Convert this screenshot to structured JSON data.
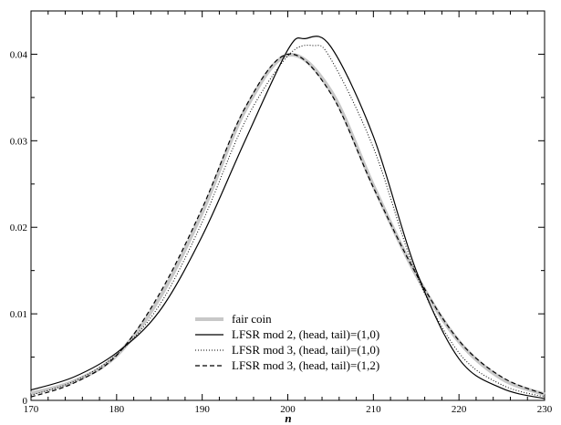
{
  "chart_data": {
    "type": "line",
    "title": "",
    "xlabel": "n",
    "ylabel": "",
    "xlim": [
      170,
      230
    ],
    "ylim": [
      0,
      0.045
    ],
    "xticks": [
      170,
      180,
      190,
      200,
      210,
      220,
      230
    ],
    "yticks": [
      0.01,
      0.02,
      0.03,
      0.04
    ],
    "ytick_labels": [
      "0.01",
      "0.02",
      "0.03",
      "0.04"
    ],
    "xtick_labels": [
      "170",
      "180",
      "190",
      "200",
      "210",
      "220",
      "230"
    ],
    "legend_position": "bottom-center",
    "series": [
      {
        "name": "fair coin",
        "style": "thick-gray",
        "color": "#c8c8c8",
        "x": [
          170,
          175,
          180,
          185,
          190,
          195,
          200,
          205,
          210,
          215,
          220,
          225,
          230
        ],
        "y": [
          0.0008,
          0.0022,
          0.0052,
          0.0118,
          0.0217,
          0.0335,
          0.0399,
          0.0358,
          0.0248,
          0.0145,
          0.0068,
          0.0025,
          0.0007
        ]
      },
      {
        "name": "LFSR mod 2, (head, tail)=(1,0)",
        "style": "solid",
        "color": "#000000",
        "x": [
          170,
          175,
          180,
          185,
          190,
          195,
          200,
          202,
          205,
          210,
          215,
          220,
          225,
          230
        ],
        "y": [
          0.0012,
          0.0027,
          0.0055,
          0.0103,
          0.019,
          0.03,
          0.0405,
          0.0418,
          0.0409,
          0.0305,
          0.015,
          0.0048,
          0.0014,
          0.0002
        ]
      },
      {
        "name": "LFSR mod 3, (head, tail)=(1,0)",
        "style": "dotted",
        "color": "#000000",
        "x": [
          170,
          175,
          180,
          185,
          190,
          195,
          200,
          203,
          205,
          210,
          215,
          220,
          225,
          230
        ],
        "y": [
          0.0006,
          0.0022,
          0.0053,
          0.011,
          0.0206,
          0.0322,
          0.0398,
          0.041,
          0.0395,
          0.0292,
          0.0146,
          0.0055,
          0.0018,
          0.0004
        ]
      },
      {
        "name": "LFSR mod 3, (head, tail)=(1,2)",
        "style": "dashed",
        "color": "#000000",
        "x": [
          170,
          175,
          180,
          185,
          190,
          195,
          200,
          205,
          210,
          215,
          220,
          225,
          230
        ],
        "y": [
          0.0004,
          0.002,
          0.0052,
          0.0123,
          0.0222,
          0.0338,
          0.04,
          0.0355,
          0.0246,
          0.0146,
          0.0069,
          0.0027,
          0.0007
        ]
      }
    ]
  }
}
